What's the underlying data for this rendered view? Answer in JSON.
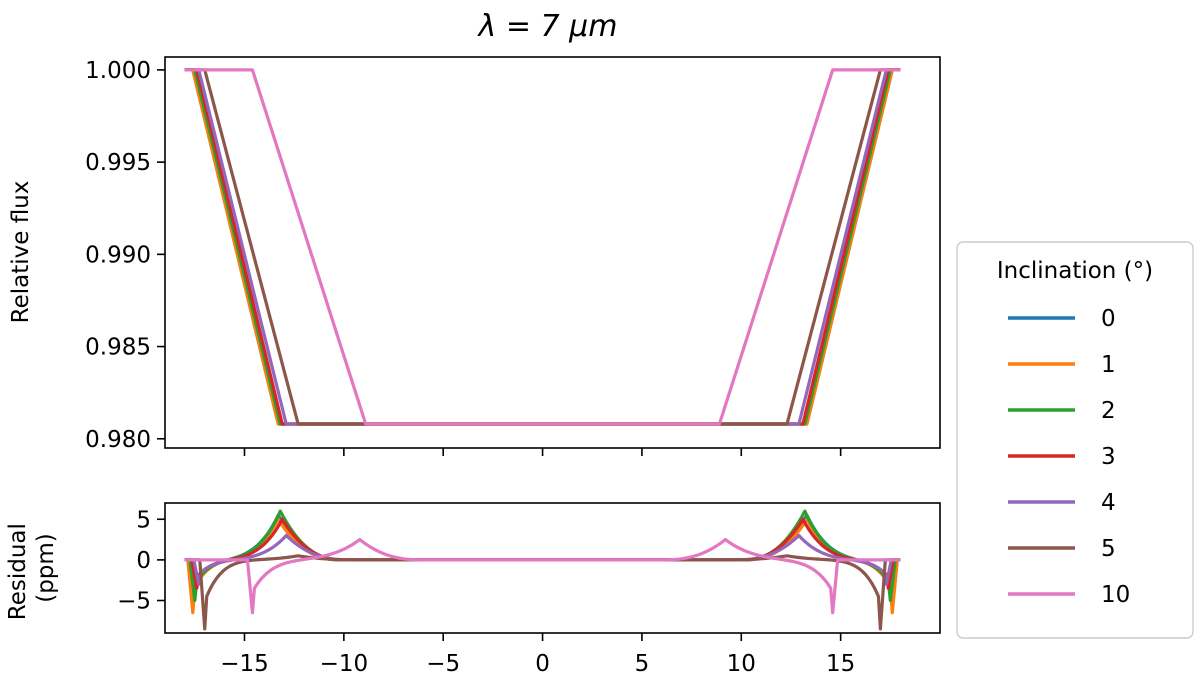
{
  "chart_data": {
    "title": "λ = 7 μm",
    "legend": {
      "title": "Inclination (°)",
      "placement": "right"
    },
    "series": [
      {
        "name": "0",
        "color": "#1f77b4",
        "half_bottom": 13.3,
        "half_top": 17.6
      },
      {
        "name": "1",
        "color": "#ff7f0e",
        "half_bottom": 13.3,
        "half_top": 17.6
      },
      {
        "name": "2",
        "color": "#2ca02c",
        "half_bottom": 13.2,
        "half_top": 17.5
      },
      {
        "name": "3",
        "color": "#d62728",
        "half_bottom": 13.1,
        "half_top": 17.4
      },
      {
        "name": "4",
        "color": "#9467bd",
        "half_bottom": 12.9,
        "half_top": 17.3
      },
      {
        "name": "5",
        "color": "#8c564b",
        "half_bottom": 12.3,
        "half_top": 17.0
      },
      {
        "name": "10",
        "color": "#e377c2",
        "half_bottom": 8.9,
        "half_top": 14.6
      }
    ],
    "top_panel": {
      "type": "line",
      "ylabel": "Relative flux",
      "xlim": [
        -19,
        20
      ],
      "ylim": [
        0.9795,
        1.0007
      ],
      "yticks": [
        1.0,
        0.995,
        0.99,
        0.985,
        0.98
      ],
      "ytick_labels": [
        "1.000",
        "0.995",
        "0.990",
        "0.985",
        "0.980"
      ],
      "x_range": [
        -18,
        18
      ],
      "out_of_transit_flux": 1.0,
      "in_transit_flux": 0.9808
    },
    "bottom_panel": {
      "type": "line",
      "ylabel": [
        "Residual",
        "(ppm)"
      ],
      "xlim": [
        -19,
        20
      ],
      "ylim": [
        -9,
        7
      ],
      "yticks": [
        5,
        0,
        -5
      ],
      "ytick_labels": [
        "5",
        "0",
        "−5"
      ],
      "xticks": [
        -15,
        -10,
        -5,
        0,
        5,
        10,
        15
      ],
      "xtick_labels": [
        "−15",
        "−10",
        "−5",
        "0",
        "5",
        "10",
        "15"
      ],
      "residual_series": [
        {
          "name": "0",
          "peak_x": 13.3,
          "peak_y": 5.5,
          "dip_x": 17.6,
          "dip_y": -6.0
        },
        {
          "name": "1",
          "peak_x": 13.3,
          "peak_y": 5.0,
          "dip_x": 17.6,
          "dip_y": -6.5
        },
        {
          "name": "2",
          "peak_x": 13.2,
          "peak_y": 6.0,
          "dip_x": 17.5,
          "dip_y": -5.0
        },
        {
          "name": "3",
          "peak_x": 13.1,
          "peak_y": 5.0,
          "dip_x": 17.4,
          "dip_y": -3.5
        },
        {
          "name": "4",
          "peak_x": 12.9,
          "peak_y": 3.0,
          "dip_x": 17.3,
          "dip_y": -3.0
        },
        {
          "name": "5",
          "peak_x": 12.3,
          "peak_y": 0.5,
          "dip_x": 17.0,
          "dip_y": -8.5
        },
        {
          "name": "10",
          "peak_x": 9.2,
          "peak_y": 2.5,
          "dip_x": 14.6,
          "dip_y": -6.5
        }
      ]
    }
  }
}
